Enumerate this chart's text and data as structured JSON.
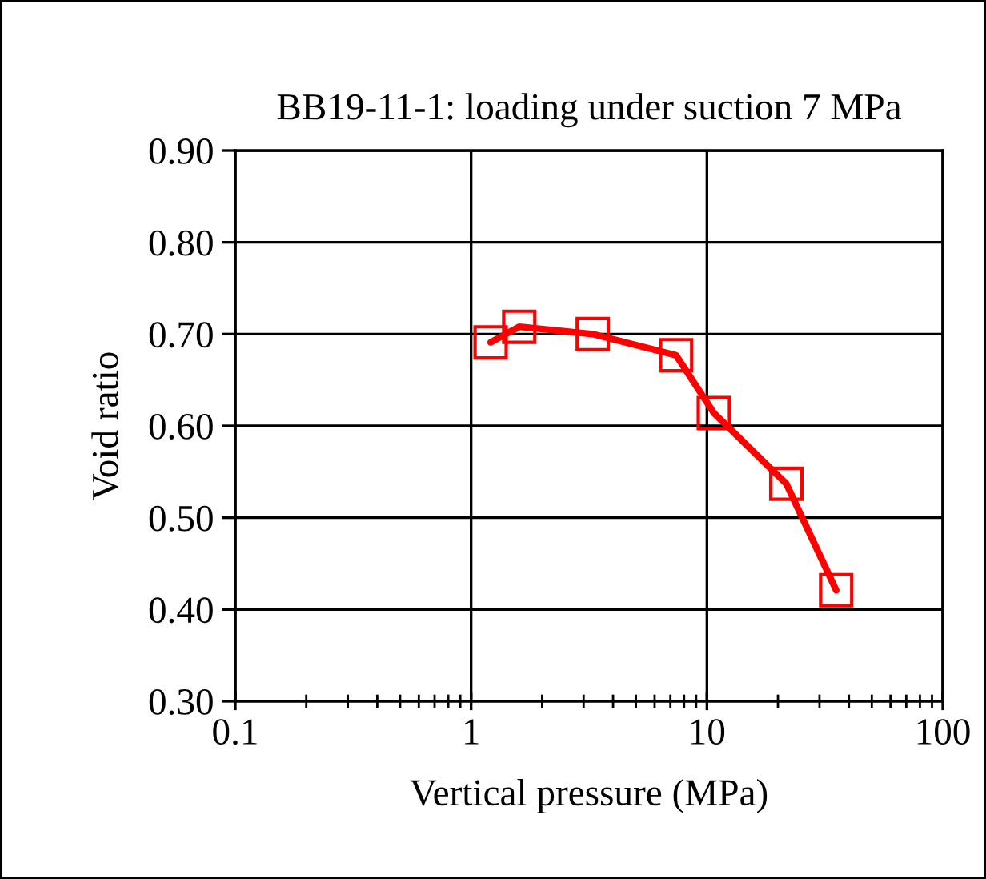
{
  "chart_data": {
    "type": "line",
    "title": "BB19-11-1: loading under suction 7 MPa",
    "xlabel": "Vertical pressure (MPa)",
    "ylabel": "Void ratio",
    "x": [
      1.21,
      1.6,
      3.28,
      7.4,
      10.7,
      21.7,
      35.3
    ],
    "series": [
      {
        "color": "#ff0000",
        "values": [
          0.691,
          0.708,
          0.7,
          0.677,
          0.614,
          0.537,
          0.421
        ]
      }
    ],
    "log": "x",
    "xlim": [
      0.1,
      100
    ],
    "xticks": [
      0.1,
      1,
      10,
      100
    ],
    "ylim": [
      0.3,
      0.9
    ],
    "yticks": [
      {
        "value": 0.3,
        "label": "0.30"
      },
      {
        "value": 0.4,
        "label": "0.40"
      },
      {
        "value": 0.5,
        "label": "0.50"
      },
      {
        "value": 0.6,
        "label": "0.60"
      },
      {
        "value": 0.7,
        "label": "0.70"
      },
      {
        "value": 0.8,
        "label": "0.80"
      },
      {
        "value": 0.9,
        "label": "0.90"
      }
    ],
    "grid": true,
    "marker": "square",
    "line_style": "solid"
  }
}
